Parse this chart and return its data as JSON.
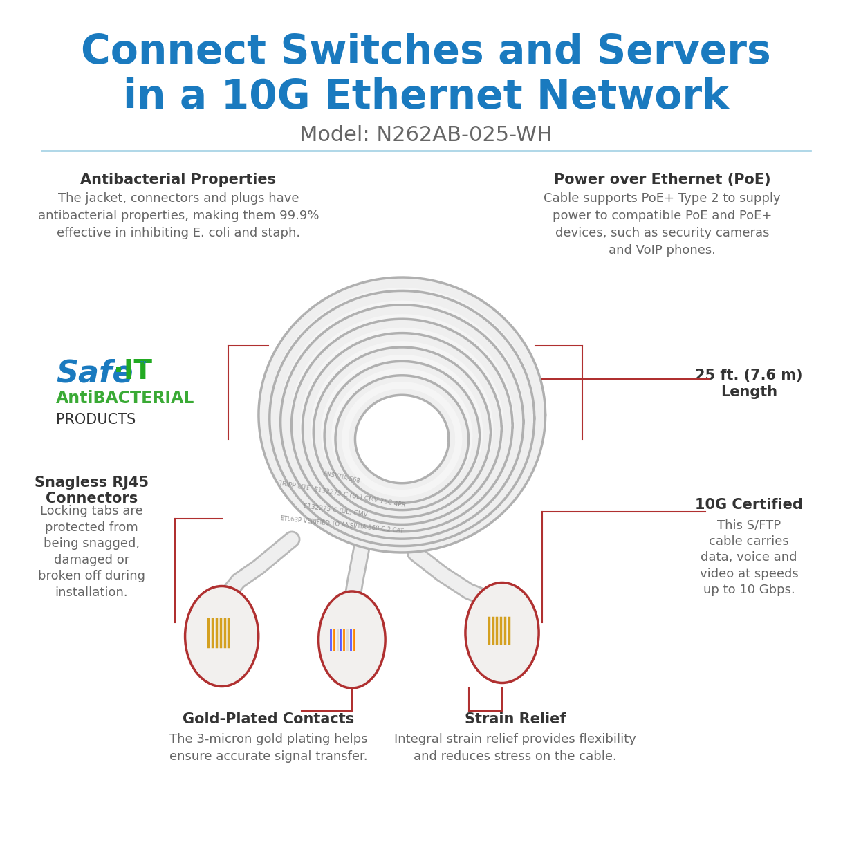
{
  "title_line1": "Connect Switches and Servers",
  "title_line2": "in a 10G Ethernet Network",
  "title_color": "#1a7abf",
  "subtitle": "Model: N262AB-025-WH",
  "subtitle_color": "#666666",
  "bg_color": "#ffffff",
  "divider_color": "#a8d4e6",
  "annotation_line_color": "#b03030",
  "label_bold_color": "#333333",
  "label_text_color": "#666666",
  "safe_it_blue": "#1a7abf",
  "safe_it_green": "#3aaa35",
  "cable_white": "#f0f0f0",
  "cable_shadow": "#c8c8c8",
  "cable_text": "#888888",
  "connector_fill": "#f2f0ee",
  "connector_edge": "#b03030",
  "feature_title_size": 15,
  "feature_body_size": 13,
  "title_fontsize": 42,
  "subtitle_fontsize": 22
}
